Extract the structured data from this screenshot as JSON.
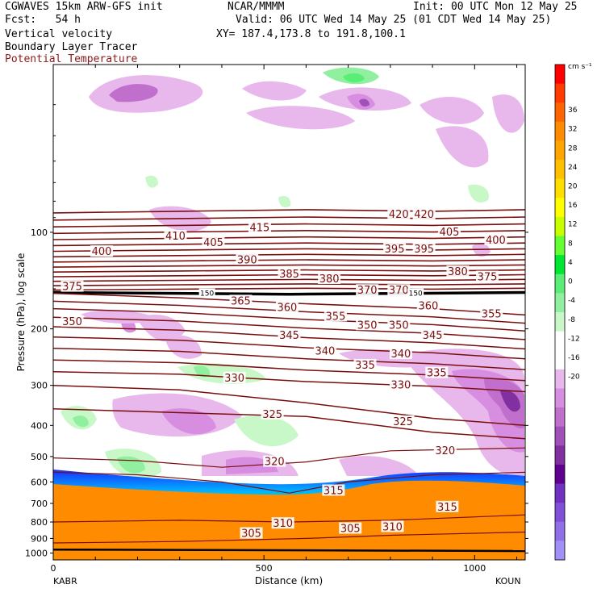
{
  "header": {
    "model": "CGWAVES 15km ARW-GFS init",
    "forecast": "Fcst:   54 h",
    "org": "NCAR/MMMM",
    "init": "Init: 00 UTC Mon 12 May 25",
    "valid": "Valid: 06 UTC Wed 14 May 25 (01 CDT Wed 14 May 25)",
    "fields": [
      "Vertical velocity",
      "Boundary Layer Tracer",
      "Potential Temperature"
    ],
    "xy": "XY= 187.4,173.8 to 191.8,100.1"
  },
  "colors": {
    "theta_contour": "#7a0e0e",
    "tropopause": "#000000",
    "field3_label": "#8b1a1a",
    "bl_tracer": "#ff8c00"
  },
  "chart_data": {
    "type": "heatmap",
    "xlabel": "Distance (km)",
    "ylabel": "Pressure (hPa), log scale",
    "x_ticks": [
      0,
      500,
      1000
    ],
    "xlim": [
      0,
      1120
    ],
    "y_ticks": [
      100,
      200,
      300,
      400,
      500,
      600,
      700,
      800,
      900,
      1000
    ],
    "ylim": [
      1050,
      30
    ],
    "endpoint_left": "KABR",
    "endpoint_right": "KOUN",
    "colorbar": {
      "unit": "cm s⁻¹",
      "labels": [
        "36",
        "32",
        "28",
        "24",
        "20",
        "16",
        "12",
        "8",
        "4",
        "0",
        "-4",
        "-8",
        "-12",
        "-16",
        "-20"
      ],
      "colors": [
        "#ff0000",
        "#ff3b00",
        "#ff6400",
        "#ff8c00",
        "#ffa500",
        "#ffc000",
        "#ffde00",
        "#ffff00",
        "#c8ff00",
        "#64ff32",
        "#00e632",
        "#5aee78",
        "#90f0a0",
        "#c8f8c8",
        "#ffffff",
        "#ffffff",
        "#e8b8ec",
        "#d88ee0",
        "#c070cc",
        "#a050b8",
        "#8030a0",
        "#600090",
        "#7030c0",
        "#8050d8",
        "#9070e8",
        "#a090f8"
      ]
    },
    "theta_labels": [
      {
        "text": "420",
        "x": 820,
        "p": 88
      },
      {
        "text": "420",
        "x": 880,
        "p": 88
      },
      {
        "text": "415",
        "x": 490,
        "p": 97
      },
      {
        "text": "410",
        "x": 290,
        "p": 103
      },
      {
        "text": "405",
        "x": 380,
        "p": 108
      },
      {
        "text": "405",
        "x": 940,
        "p": 100
      },
      {
        "text": "400",
        "x": 115,
        "p": 115
      },
      {
        "text": "400",
        "x": 1050,
        "p": 106
      },
      {
        "text": "395",
        "x": 810,
        "p": 113
      },
      {
        "text": "395",
        "x": 880,
        "p": 113
      },
      {
        "text": "390",
        "x": 460,
        "p": 122
      },
      {
        "text": "385",
        "x": 560,
        "p": 135
      },
      {
        "text": "380",
        "x": 655,
        "p": 140
      },
      {
        "text": "380",
        "x": 960,
        "p": 133
      },
      {
        "text": "375",
        "x": 45,
        "p": 148
      },
      {
        "text": "375",
        "x": 1030,
        "p": 138
      },
      {
        "text": "370",
        "x": 745,
        "p": 152
      },
      {
        "text": "370",
        "x": 820,
        "p": 152
      },
      {
        "text": "365",
        "x": 445,
        "p": 164
      },
      {
        "text": "360",
        "x": 555,
        "p": 172
      },
      {
        "text": "360",
        "x": 890,
        "p": 170
      },
      {
        "text": "355",
        "x": 670,
        "p": 183
      },
      {
        "text": "355",
        "x": 1040,
        "p": 180
      },
      {
        "text": "350",
        "x": 45,
        "p": 190
      },
      {
        "text": "350",
        "x": 745,
        "p": 195
      },
      {
        "text": "350",
        "x": 820,
        "p": 195
      },
      {
        "text": "345",
        "x": 560,
        "p": 210
      },
      {
        "text": "345",
        "x": 900,
        "p": 210
      },
      {
        "text": "340",
        "x": 645,
        "p": 235
      },
      {
        "text": "340",
        "x": 825,
        "p": 240
      },
      {
        "text": "335",
        "x": 740,
        "p": 260
      },
      {
        "text": "335",
        "x": 910,
        "p": 275
      },
      {
        "text": "330",
        "x": 430,
        "p": 285
      },
      {
        "text": "330",
        "x": 825,
        "p": 300
      },
      {
        "text": "325",
        "x": 520,
        "p": 370
      },
      {
        "text": "325",
        "x": 830,
        "p": 390
      },
      {
        "text": "320",
        "x": 525,
        "p": 520
      },
      {
        "text": "320",
        "x": 930,
        "p": 480
      },
      {
        "text": "315",
        "x": 665,
        "p": 640
      },
      {
        "text": "315",
        "x": 935,
        "p": 720
      },
      {
        "text": "310",
        "x": 545,
        "p": 810
      },
      {
        "text": "310",
        "x": 805,
        "p": 830
      },
      {
        "text": "305",
        "x": 470,
        "p": 870
      },
      {
        "text": "305",
        "x": 705,
        "p": 840
      }
    ],
    "tropopause_labels": [
      {
        "text": "150",
        "x": 365,
        "p": 155
      },
      {
        "text": "150",
        "x": 860,
        "p": 155
      }
    ]
  }
}
